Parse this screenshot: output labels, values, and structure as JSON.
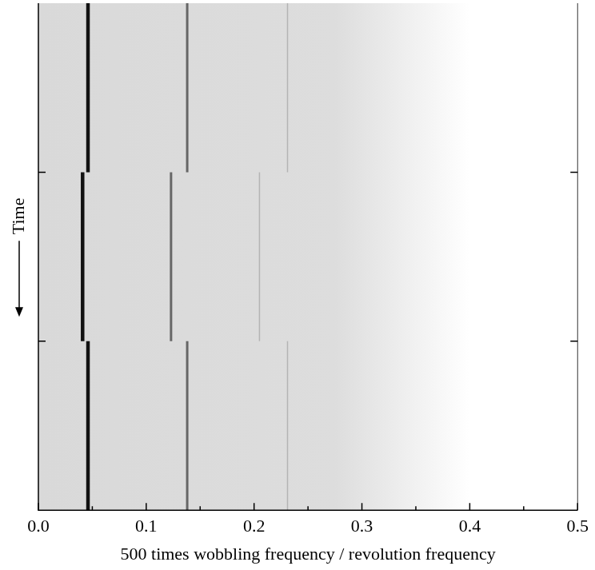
{
  "chart_data": {
    "type": "line",
    "x_label": "500 times wobbling frequency / revolution frequency",
    "y_label": "Time",
    "xlim": [
      0,
      0.5
    ],
    "xticks": [
      {
        "value": 0,
        "label": "0.0"
      },
      0.1,
      0.2,
      0.3,
      0.4,
      0.5
    ],
    "ylim": [
      0,
      3
    ],
    "yticks": [
      1,
      2
    ],
    "tick_labels": "x",
    "grid": false,
    "series": [
      {
        "color": "#111111",
        "x": [
          0.046,
          0.046,
          null,
          0.041,
          0.041,
          null,
          0.046,
          0.046
        ],
        "values": [
          0,
          1,
          null,
          1,
          2,
          null,
          2,
          3
        ]
      },
      {
        "color": "#666666",
        "x": [
          0.138,
          0.138,
          null,
          0.123,
          0.123,
          null,
          0.138,
          0.138
        ],
        "values": [
          0,
          1,
          null,
          1,
          2,
          null,
          2,
          3
        ]
      },
      {
        "color": "#b4b4b4",
        "x": [
          0.231,
          0.231,
          null,
          0.205,
          0.205,
          null,
          0.231,
          0.231
        ],
        "values": [
          0,
          1,
          null,
          1,
          2,
          null,
          2,
          3
        ]
      }
    ]
  }
}
